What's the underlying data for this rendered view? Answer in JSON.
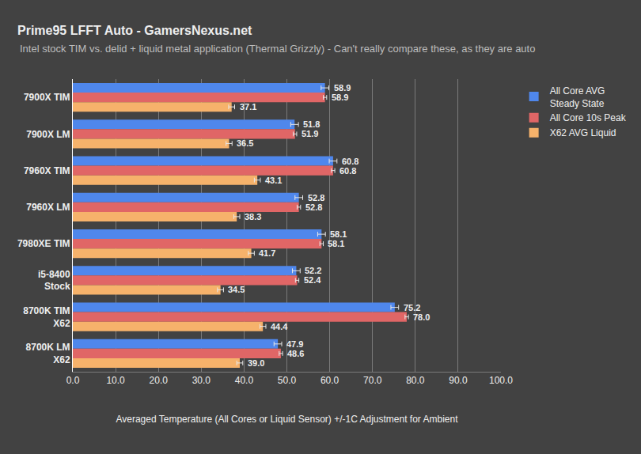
{
  "chart_data": {
    "type": "bar",
    "title": "Prime95 LFFT Auto - GamersNexus.net",
    "subtitle": "Intel stock TIM vs. delid + liquid metal application (Thermal Grizzly) - Can't really compare these, as they are auto",
    "x_label": "Averaged Temperature (All Cores or Liquid Sensor) +/-1C Adjustment for Ambient",
    "orientation": "horizontal",
    "categories": [
      "7900X TIM",
      "7900X LM",
      "7960X TIM",
      "7960X LM",
      "7980XE TIM",
      "i5-8400\nStock",
      "8700K TIM\nX62",
      "8700K LM\nX62"
    ],
    "series": [
      {
        "name": "All Core AVG\nSteady State",
        "color": "#4f87ec",
        "values": [
          58.9,
          51.8,
          60.8,
          52.8,
          58.1,
          52.2,
          75.2,
          47.9
        ],
        "value_labels": [
          "58.9",
          "51.8",
          "60.8",
          "52.8",
          "58.1",
          "52.2",
          "75.2",
          "47.9"
        ],
        "errors": [
          0.9,
          0.9,
          0.9,
          0.9,
          0.9,
          0.9,
          0.9,
          0.9
        ]
      },
      {
        "name": "All Core 10s Peak",
        "color": "#e06666",
        "values": [
          58.9,
          51.9,
          60.8,
          52.8,
          58.1,
          52.4,
          78.0,
          48.6
        ],
        "value_labels": [
          "58.9",
          "51.9",
          "60.8",
          "52.8",
          "58.1",
          "52.4",
          "78.0",
          "48.6"
        ],
        "errors": [
          0.4,
          0.4,
          0.4,
          0.4,
          0.4,
          0.4,
          0.4,
          0.4
        ]
      },
      {
        "name": "X62 AVG Liquid",
        "color": "#f6b26b",
        "values": [
          37.1,
          36.5,
          43.1,
          38.3,
          41.7,
          34.5,
          44.4,
          39.0
        ],
        "value_labels": [
          "37.1",
          "36.5",
          "43.1",
          "38.3",
          "41.7",
          "34.5",
          "44.4",
          "39.0"
        ],
        "errors": [
          0.7,
          0.7,
          0.7,
          0.7,
          0.7,
          0.7,
          0.7,
          0.7
        ]
      }
    ],
    "xlim": [
      0,
      100
    ],
    "xticks": [
      {
        "value": 0,
        "label": "0.0"
      },
      {
        "value": 10,
        "label": "10.0"
      },
      {
        "value": 20,
        "label": "20.0"
      },
      {
        "value": 30,
        "label": "30.0"
      },
      {
        "value": 40,
        "label": "40.0"
      },
      {
        "value": 50,
        "label": "50.0"
      },
      {
        "value": 60,
        "label": "60.0"
      },
      {
        "value": 70,
        "label": "70.0"
      },
      {
        "value": 80,
        "label": "80.0"
      },
      {
        "value": 90,
        "label": "90.0"
      },
      {
        "value": 100,
        "label": "100.0"
      }
    ],
    "grid": true,
    "legend": "right",
    "data_labels": true
  }
}
